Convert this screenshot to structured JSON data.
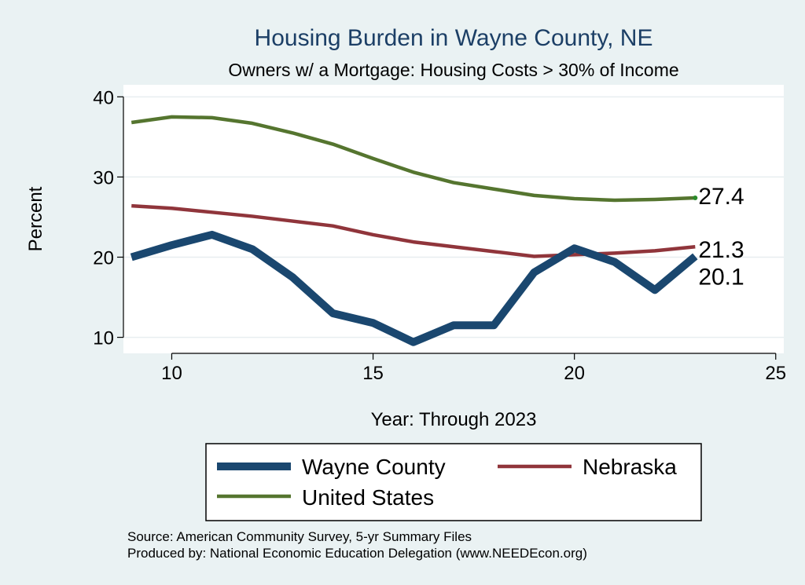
{
  "chart_data": {
    "type": "line",
    "title": "Housing Burden in Wayne County, NE",
    "subtitle": "Owners w/ a Mortgage: Housing Costs > 30% of Income",
    "xlabel": "Year: Through 2023",
    "ylabel": "Percent",
    "xlim": [
      8.8,
      25.2
    ],
    "ylim": [
      8.0,
      41.5
    ],
    "xticks": [
      10,
      15,
      20,
      25
    ],
    "yticks": [
      10,
      20,
      30,
      40
    ],
    "grid": true,
    "legend_position": "bottom",
    "series": [
      {
        "name": "Wayne County",
        "color": "#1a476f",
        "x": [
          9,
          10,
          11,
          12,
          13,
          14,
          15,
          16,
          17,
          18,
          19,
          20,
          21,
          22,
          23
        ],
        "values": [
          20.0,
          21.5,
          22.8,
          21.0,
          17.5,
          13.0,
          11.8,
          9.4,
          11.5,
          11.5,
          18.1,
          21.1,
          19.4,
          15.9,
          20.1
        ],
        "end_label": "20.1"
      },
      {
        "name": "Nebraska",
        "color": "#90353b",
        "x": [
          9,
          10,
          11,
          12,
          13,
          14,
          15,
          16,
          17,
          18,
          19,
          20,
          21,
          22,
          23
        ],
        "values": [
          26.4,
          26.1,
          25.6,
          25.1,
          24.5,
          23.9,
          22.8,
          21.9,
          21.3,
          20.7,
          20.1,
          20.3,
          20.5,
          20.8,
          21.3
        ],
        "end_label": "21.3"
      },
      {
        "name": "United States",
        "color": "#55752f",
        "x": [
          9,
          10,
          11,
          12,
          13,
          14,
          15,
          16,
          17,
          18,
          19,
          20,
          21,
          22,
          23
        ],
        "values": [
          36.8,
          37.5,
          37.4,
          36.7,
          35.5,
          34.1,
          32.3,
          30.6,
          29.3,
          28.5,
          27.7,
          27.3,
          27.1,
          27.2,
          27.4
        ],
        "end_label": "27.4"
      }
    ]
  },
  "source_lines": [
    "Source: American Community Survey, 5-yr Summary Files",
    "Produced by: National Economic Education Delegation (www.NEEDEcon.org)"
  ]
}
